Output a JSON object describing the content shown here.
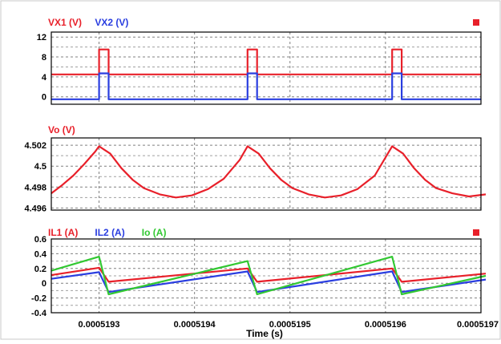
{
  "chart_data": [
    {
      "type": "line",
      "legend": [
        {
          "name": "VX1 (V)",
          "color": "#e8202a"
        },
        {
          "name": "VX2 (V)",
          "color": "#2a3ee0"
        }
      ],
      "legend_marker": "square",
      "ylim": [
        -1.5,
        13
      ],
      "yticks": [
        "12",
        "8",
        "4",
        "0"
      ],
      "xlim": [
        0.00051925,
        0.0005197
      ],
      "grid": true,
      "series": [
        {
          "name": "VX1 (V)",
          "color": "#e8202a",
          "x": [
            0.00051925,
            0.0005193,
            0.0005193,
            0.00051931,
            0.00051931,
            0.0005194555,
            0.0005194555,
            0.0005194655,
            0.0005194655,
            0.000519607,
            0.000519607,
            0.000519617,
            0.000519617,
            0.0005197
          ],
          "y": [
            4.5,
            4.5,
            9.5,
            9.5,
            4.5,
            4.5,
            9.5,
            9.5,
            4.5,
            4.5,
            9.5,
            9.5,
            4.5,
            4.5
          ]
        },
        {
          "name": "VX2 (V)",
          "color": "#2a3ee0",
          "x": [
            0.00051925,
            0.0005193,
            0.0005193,
            0.00051931,
            0.00051931,
            0.0005194555,
            0.0005194555,
            0.0005194655,
            0.0005194655,
            0.000519607,
            0.000519607,
            0.000519617,
            0.000519617,
            0.0005197
          ],
          "y": [
            -0.5,
            -0.5,
            4.7,
            4.7,
            -0.5,
            -0.5,
            4.7,
            4.7,
            -0.5,
            -0.5,
            4.7,
            4.7,
            -0.5,
            -0.5
          ]
        }
      ]
    },
    {
      "type": "line",
      "legend": [
        {
          "name": "Vo (V)",
          "color": "#e8202a"
        }
      ],
      "ylim": [
        4.4958,
        4.5027
      ],
      "yticks": [
        "4.502",
        "4.5",
        "4.498",
        "4.496"
      ],
      "xlim": [
        0.00051925,
        0.0005197
      ],
      "grid": true,
      "series": [
        {
          "name": "Vo (V)",
          "color": "#e8202a",
          "x": [
            0.00051925,
            0.0005192615,
            0.000519273,
            0.0005192845,
            0.000519296,
            0.0005193,
            0.0005193117,
            0.0005193235,
            0.0005193352,
            0.000519347,
            0.0005193637,
            0.0005193805,
            0.0005193972,
            0.000519414,
            0.0005194306,
            0.0005194473,
            0.0005194555,
            0.0005194672,
            0.000519479,
            0.0005194907,
            0.0005195025,
            0.0005195195,
            0.0005195365,
            0.0005195535,
            0.0005195705,
            0.0005195888,
            0.000519607,
            0.0005196185,
            0.00051963,
            0.0005196415,
            0.000519653,
            0.00051967,
            0.0005196875,
            0.000519705
          ],
          "y": [
            4.4974,
            4.4982,
            4.4991,
            4.5002,
            4.5014,
            4.5019,
            4.5012,
            4.4998,
            4.4987,
            4.4979,
            4.4973,
            4.497,
            4.4972,
            4.4978,
            4.4988,
            4.5006,
            4.5019,
            4.5012,
            4.4998,
            4.4987,
            4.4979,
            4.4973,
            4.497,
            4.4972,
            4.4978,
            4.4991,
            4.5019,
            4.5012,
            4.4998,
            4.4987,
            4.4979,
            4.4974,
            4.4971,
            4.4973
          ]
        }
      ]
    },
    {
      "type": "line",
      "legend": [
        {
          "name": "IL1 (A)",
          "color": "#e8202a"
        },
        {
          "name": "IL2 (A)",
          "color": "#2a3ee0"
        },
        {
          "name": "Io (A)",
          "color": "#32c832"
        }
      ],
      "legend_marker": "square",
      "ylim": [
        -0.4,
        0.6
      ],
      "yticks": [
        "0.6",
        "0.4",
        "0.2",
        "0",
        "-0.2",
        "-0.4"
      ],
      "xlim": [
        0.00051925,
        0.0005197
      ],
      "xticks": [
        "0.0005193",
        "0.0005194",
        "0.0005195",
        "0.0005196",
        "0.0005197"
      ],
      "xtick_values": [
        0.0005193,
        0.0005194,
        0.0005195,
        0.0005196,
        0.0005197
      ],
      "xlabel": "Time (s)",
      "grid": true,
      "series": [
        {
          "name": "IL1 (A)",
          "color": "#e8202a",
          "x": [
            0.00051925,
            0.0005193,
            0.00051931,
            0.0005194555,
            0.0005194655,
            0.000519607,
            0.000519617,
            0.000519705
          ],
          "y": [
            0.11,
            0.21,
            0.02,
            0.2,
            0.02,
            0.2,
            0.02,
            0.13
          ]
        },
        {
          "name": "IL2 (A)",
          "color": "#2a3ee0",
          "x": [
            0.00051925,
            0.0005193,
            0.00051931,
            0.0005194555,
            0.0005194655,
            0.000519607,
            0.000519617,
            0.000519705
          ],
          "y": [
            0.06,
            0.15,
            -0.12,
            0.16,
            -0.12,
            0.16,
            -0.12,
            0.05
          ]
        },
        {
          "name": "Io (A)",
          "color": "#32c832",
          "x": [
            0.00051925,
            0.0005193,
            0.00051931,
            0.0005194555,
            0.0005194655,
            0.000519607,
            0.000519617,
            0.000519705
          ],
          "y": [
            0.17,
            0.36,
            -0.15,
            0.3,
            -0.15,
            0.36,
            -0.15,
            0.1
          ]
        }
      ]
    }
  ]
}
